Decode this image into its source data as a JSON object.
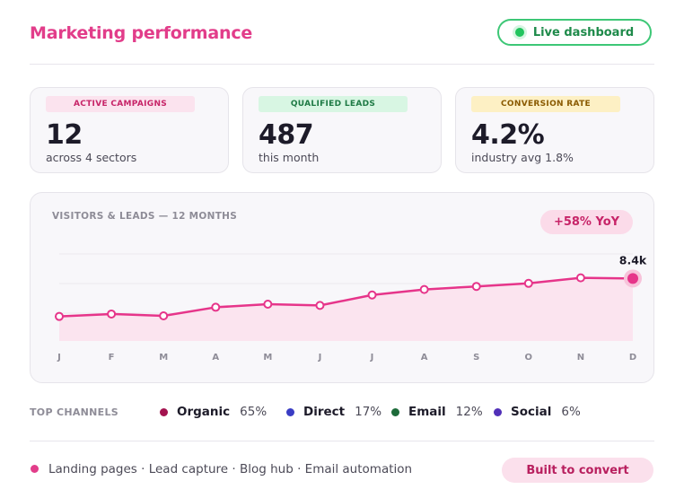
{
  "header": {
    "title": "Marketing performance",
    "live_label": "Live dashboard"
  },
  "kpis": [
    {
      "label": "ACTIVE CAMPAIGNS",
      "value": "12",
      "sub": "across 4 sectors",
      "pill_bg": "#fbe3ee",
      "pill_fg": "#c72468"
    },
    {
      "label": "QUALIFIED LEADS",
      "value": "487",
      "sub": "this month",
      "pill_bg": "#d8f6e3",
      "pill_fg": "#1e7a45"
    },
    {
      "label": "CONVERSION RATE",
      "value": "4.2%",
      "sub": "industry avg 1.8%",
      "pill_bg": "#fdf0c4",
      "pill_fg": "#8a5a00"
    }
  ],
  "chart": {
    "title": "VISITORS & LEADS — 12 MONTHS",
    "badge": "+58% YoY",
    "end_label": "8.4k"
  },
  "chart_data": {
    "type": "area",
    "x": [
      "J",
      "F",
      "M",
      "A",
      "M",
      "J",
      "J",
      "A",
      "S",
      "O",
      "N",
      "D"
    ],
    "series": [
      {
        "values": [
          5.3,
          5.5,
          5.35,
          6.05,
          6.3,
          6.2,
          7.05,
          7.5,
          7.75,
          8.0,
          8.45,
          8.4
        ]
      }
    ],
    "ylim": [
      3.3,
      10.4
    ],
    "color": "#e6358a",
    "fill": "#fbe4ef",
    "grid": true
  },
  "channels": {
    "label": "TOP CHANNELS",
    "items": [
      {
        "name": "Organic",
        "pct": "65%",
        "color": "#a3134f"
      },
      {
        "name": "Direct",
        "pct": "17%",
        "color": "#3a3dc4"
      },
      {
        "name": "Email",
        "pct": "12%",
        "color": "#1d6b3a"
      },
      {
        "name": "Social",
        "pct": "6%",
        "color": "#5130b8"
      }
    ]
  },
  "footer": {
    "text": "Landing pages · Lead capture · Blog hub · Email automation",
    "cta": "Built to convert"
  }
}
